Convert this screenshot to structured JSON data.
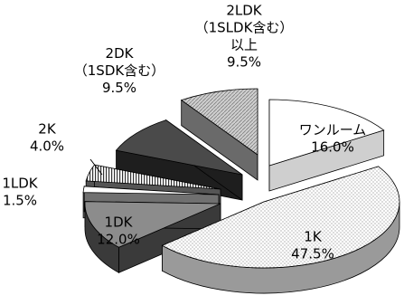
{
  "chart_data": {
    "type": "pie",
    "style": "3d-exploded",
    "slices": [
      {
        "label": [
          "ワンルーム"
        ],
        "percent_text": "16.0%",
        "value": 16.0,
        "fill": "#ffffff",
        "pattern": "none",
        "side": "#cfcfcf"
      },
      {
        "label": [
          "1K"
        ],
        "percent_text": "47.5%",
        "value": 47.5,
        "fill": "#ffffff",
        "pattern": "dots",
        "side": "#9a9a9a"
      },
      {
        "label": [
          "1DK"
        ],
        "percent_text": "12.0%",
        "value": 12.0,
        "fill": "#8c8c8c",
        "pattern": "none",
        "side": "#3a3a3a"
      },
      {
        "label": [
          "1LDK"
        ],
        "percent_text": "1.5%",
        "value": 1.5,
        "fill": "#ffffff",
        "pattern": "none",
        "side": "#707070"
      },
      {
        "label": [
          "2K"
        ],
        "percent_text": "4.0%",
        "value": 4.0,
        "fill": "#ffffff",
        "pattern": "vlines",
        "side": "#555555"
      },
      {
        "label": [
          "2DK",
          "（1SDK含む）"
        ],
        "percent_text": "9.5%",
        "value": 9.5,
        "fill": "#4a4a4a",
        "pattern": "none",
        "side": "#1e1e1e"
      },
      {
        "label": [
          "2LDK",
          "（1SLDK含む）",
          "以上"
        ],
        "percent_text": "9.5%",
        "value": 9.5,
        "fill": "#c8c8c8",
        "pattern": "hatch",
        "side": "#6a6a6a"
      }
    ]
  }
}
